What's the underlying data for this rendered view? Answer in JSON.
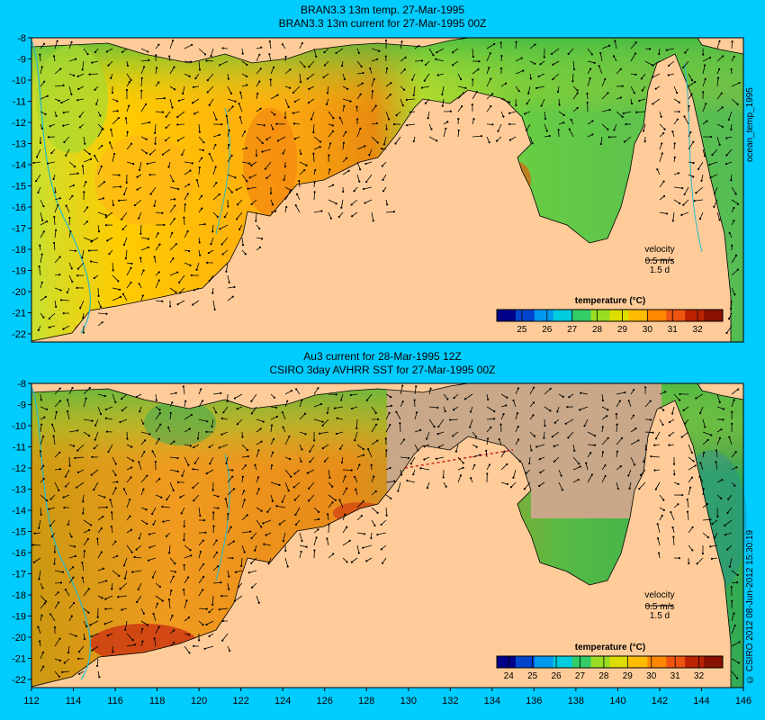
{
  "colors": {
    "background": "#00ccff",
    "land": "#ffcc99",
    "nodata": "#c8a888",
    "coast_current": "#22bbcc"
  },
  "top_panel": {
    "title_line1": "BRAN3.3 13m temp. 27-Mar-1995",
    "title_line2": "BRAN3.3 13m current for 27-Mar-1995 00Z",
    "side_label": "ocean_temp_1995",
    "velocity_label": "velocity",
    "velocity_speed": "0.5 m/s",
    "velocity_time": "1.5 d",
    "colorbar_title": "temperature (°C)",
    "colorbar_ticks": [
      "25",
      "26",
      "27",
      "28",
      "29",
      "30",
      "31",
      "32"
    ],
    "colorbar_range": [
      24,
      33
    ]
  },
  "bottom_panel": {
    "title_line1": "Au3 current for 28-Mar-1995 12Z",
    "title_line2": "CSIRO 3day AVHRR SST for 27-Mar-1995 00Z",
    "side_label": "© CSIRO 2012   08-Jun-2012 15:30:19",
    "velocity_label": "velocity",
    "velocity_speed": "0.5 m/s",
    "velocity_time": "1.5 d",
    "colorbar_title": "temperature (°C)",
    "colorbar_ticks": [
      "24",
      "25",
      "26",
      "27",
      "28",
      "29",
      "30",
      "31",
      "32"
    ],
    "colorbar_range": [
      23.5,
      33
    ]
  },
  "lat_ticks": [
    "-8",
    "-9",
    "-10",
    "-11",
    "-12",
    "-13",
    "-14",
    "-15",
    "-16",
    "-17",
    "-18",
    "-19",
    "-20",
    "-21",
    "-22"
  ],
  "lon_ticks": [
    "112",
    "114",
    "116",
    "118",
    "120",
    "122",
    "124",
    "126",
    "128",
    "130",
    "132",
    "134",
    "136",
    "138",
    "140",
    "142",
    "144",
    "146"
  ]
}
